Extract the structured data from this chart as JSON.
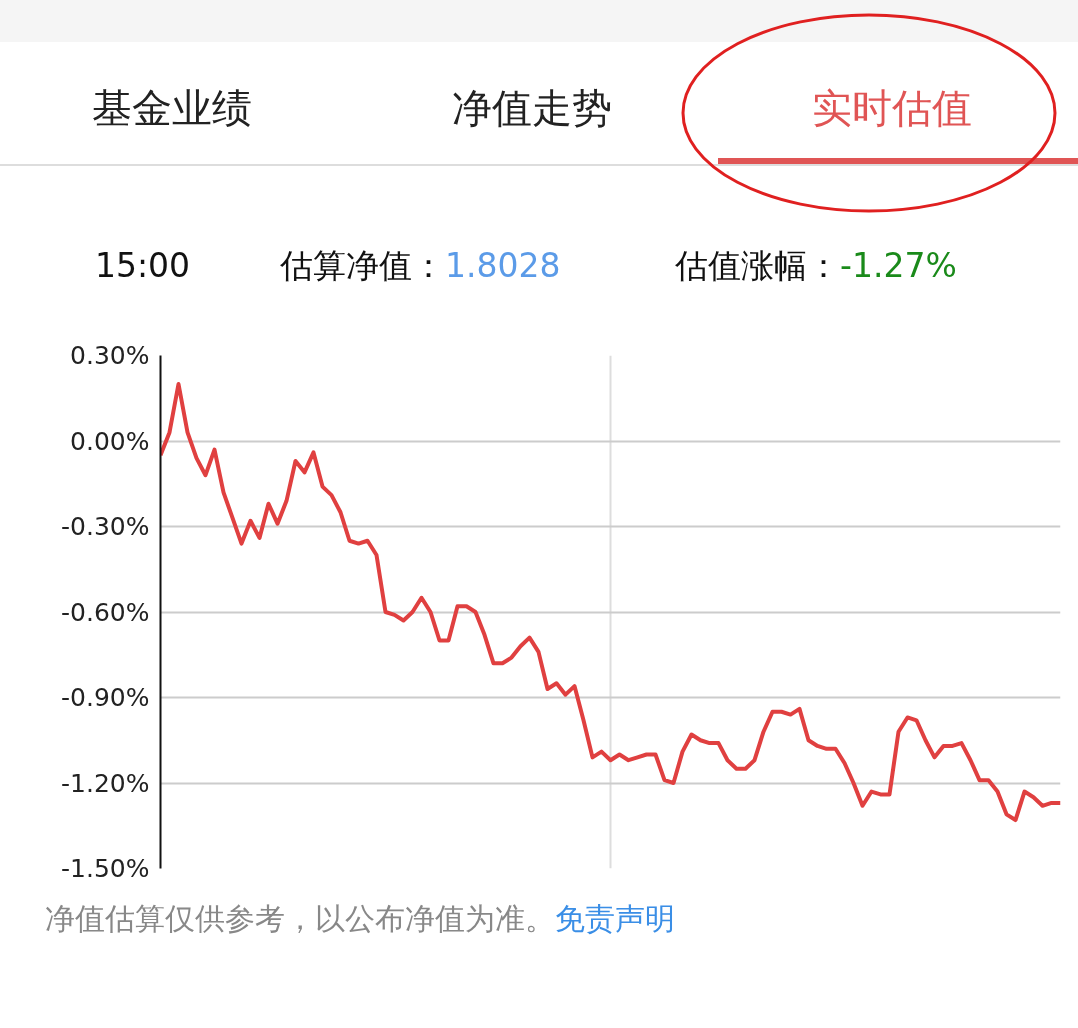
{
  "chart_data": {
    "type": "line",
    "annotations": [
      "基金业绩",
      "净值走势",
      "实时估值",
      "15:00",
      "估算净值：",
      "1.8028",
      "估值涨幅：",
      "-1.27%",
      "净值估算仅供参考，以公布净值为准。",
      "免责声明"
    ],
    "categories": [
      null,
      null,
      null,
      null,
      null,
      null,
      null,
      null,
      null,
      null,
      null,
      null,
      null,
      null,
      null,
      null,
      null,
      null,
      null,
      null,
      null,
      null,
      null,
      null,
      null,
      null,
      null,
      null,
      null,
      null,
      null,
      null,
      null,
      null,
      null,
      null,
      null,
      null,
      null,
      null,
      null,
      null,
      null,
      null,
      null,
      null,
      null,
      null,
      null,
      null,
      null,
      null,
      null,
      null,
      null,
      null,
      null,
      null,
      null,
      null,
      null,
      null,
      null,
      null,
      null,
      null,
      null,
      null,
      null,
      null,
      null,
      null,
      null,
      null,
      null,
      null,
      null,
      null,
      null,
      null,
      null,
      null,
      null,
      null,
      null,
      null,
      null,
      null,
      null,
      null,
      null,
      null,
      null,
      null,
      null,
      null,
      null,
      null,
      null,
      null,
      null
    ],
    "series": [
      {
        "color": "#e04040",
        "values": [
          -0.05,
          0.03,
          0.2,
          0.03,
          -0.06,
          -0.12,
          -0.03,
          -0.18,
          -0.27,
          -0.36,
          -0.28,
          -0.34,
          -0.22,
          -0.29,
          -0.21,
          -0.07,
          -0.11,
          -0.04,
          -0.16,
          -0.19,
          -0.25,
          -0.35,
          -0.36,
          -0.35,
          -0.4,
          -0.6,
          -0.61,
          -0.63,
          -0.6,
          -0.55,
          -0.6,
          -0.7,
          -0.7,
          -0.58,
          -0.58,
          -0.6,
          -0.68,
          -0.78,
          -0.78,
          -0.76,
          -0.72,
          -0.69,
          -0.74,
          -0.87,
          -0.85,
          -0.89,
          -0.86,
          -0.98,
          -1.11,
          -1.09,
          -1.12,
          -1.1,
          -1.12,
          -1.11,
          -1.1,
          -1.1,
          -1.19,
          -1.2,
          -1.09,
          -1.03,
          -1.05,
          -1.06,
          -1.06,
          -1.12,
          -1.15,
          -1.15,
          -1.12,
          -1.02,
          -0.95,
          -0.95,
          -0.96,
          -0.94,
          -1.05,
          -1.07,
          -1.08,
          -1.08,
          -1.13,
          -1.2,
          -1.28,
          -1.23,
          -1.24,
          -1.24,
          -1.02,
          -0.97,
          -0.98,
          -1.05,
          -1.11,
          -1.07,
          -1.07,
          -1.06,
          -1.12,
          -1.19,
          -1.19,
          -1.23,
          -1.31,
          -1.33,
          -1.23,
          -1.25,
          -1.28,
          -1.27,
          -1.27
        ]
      }
    ],
    "ylim": [
      -1.5,
      0.3
    ],
    "yticks": [
      {
        "value": 0.3,
        "label": "0.30%"
      },
      {
        "value": 0,
        "label": "0.00%"
      },
      {
        "value": -0.3,
        "label": "-0.30%"
      },
      {
        "value": -0.6,
        "label": "-0.60%"
      },
      {
        "value": -0.9,
        "label": "-0.90%"
      },
      {
        "value": -1.2,
        "label": "-1.20%"
      },
      {
        "value": -1.5,
        "label": "-1.50%"
      }
    ],
    "grid": true,
    "tick_labels": "y",
    "marker": "none",
    "line_style": "solid"
  }
}
